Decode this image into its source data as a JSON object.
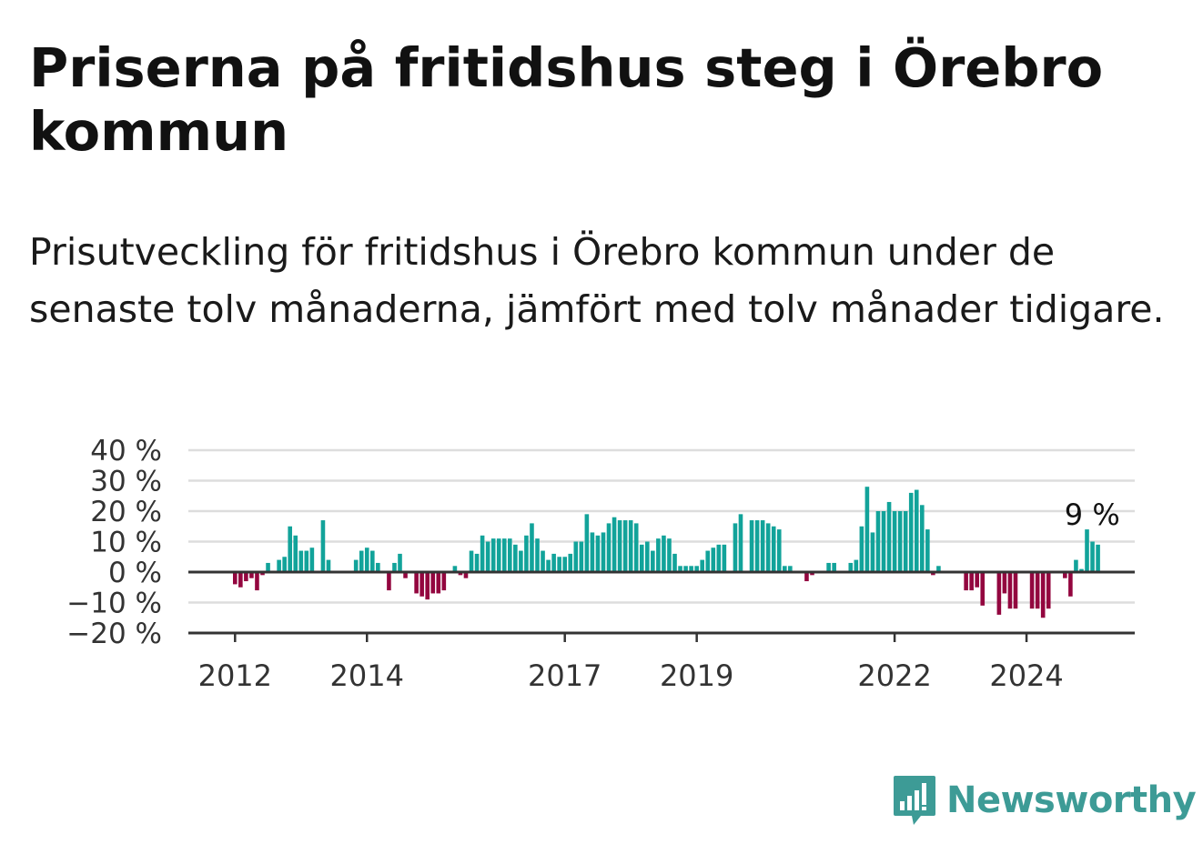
{
  "title": "Priserna på fritidshus steg i Örebro kommun",
  "subtitle": "Prisutveckling för fritidshus i Örebro kommun under de senaste tolv månaderna, jämfört med tolv månader tidigare.",
  "brand": {
    "name": "Newsworthy",
    "color": "#3d9b96",
    "icon": "bar-chart-speech-bubble-icon"
  },
  "colors": {
    "positive": "#12a39a",
    "negative": "#93063f",
    "grid": "#dddddd",
    "axis": "#333333"
  },
  "chart_data": {
    "type": "bar",
    "title": "Priserna på fritidshus steg i Örebro kommun",
    "ylim": [
      -20,
      40
    ],
    "yticks": [
      40,
      30,
      20,
      10,
      0,
      -10,
      -20
    ],
    "ytick_labels": [
      "40 %",
      "30 %",
      "20 %",
      "10 %",
      "0 %",
      "−10 %",
      "−20 %"
    ],
    "xticks": [
      2012,
      2014,
      2017,
      2019,
      2022,
      2024
    ],
    "xtick_labels": [
      "2012",
      "2014",
      "2017",
      "2019",
      "2022",
      "2024"
    ],
    "grid": true,
    "annotation": {
      "label": "9 %",
      "value": 9
    },
    "x_start": "2012-01",
    "interval": "month",
    "values": [
      -4,
      -5,
      -3,
      -2,
      -6,
      -1,
      3,
      0,
      4,
      5,
      15,
      12,
      7,
      7,
      8,
      0,
      17,
      4,
      null,
      null,
      null,
      null,
      4,
      7,
      8,
      7,
      3,
      null,
      -6,
      3,
      6,
      -2,
      null,
      -7,
      -8,
      -9,
      -7,
      -7,
      -6,
      null,
      2,
      -1,
      -2,
      7,
      6,
      12,
      10,
      11,
      11,
      11,
      11,
      9,
      7,
      12,
      16,
      11,
      7,
      4,
      6,
      5,
      5,
      6,
      10,
      10,
      19,
      13,
      12,
      13,
      16,
      18,
      17,
      17,
      17,
      16,
      9,
      10,
      7,
      11,
      12,
      11,
      6,
      2,
      2,
      2,
      2,
      4,
      7,
      8,
      9,
      9,
      null,
      16,
      19,
      null,
      17,
      17,
      17,
      16,
      15,
      14,
      2,
      2,
      null,
      null,
      -3,
      -1,
      null,
      null,
      3,
      3,
      null,
      null,
      3,
      4,
      15,
      28,
      13,
      20,
      20,
      23,
      20,
      20,
      20,
      26,
      27,
      22,
      14,
      -1,
      2,
      null,
      null,
      null,
      null,
      -6,
      -6,
      -5,
      -11,
      null,
      null,
      -14,
      -7,
      -12,
      -12,
      null,
      null,
      -12,
      -12,
      -15,
      -12,
      null,
      null,
      -2,
      -8,
      4,
      1,
      14,
      10,
      9
    ]
  }
}
